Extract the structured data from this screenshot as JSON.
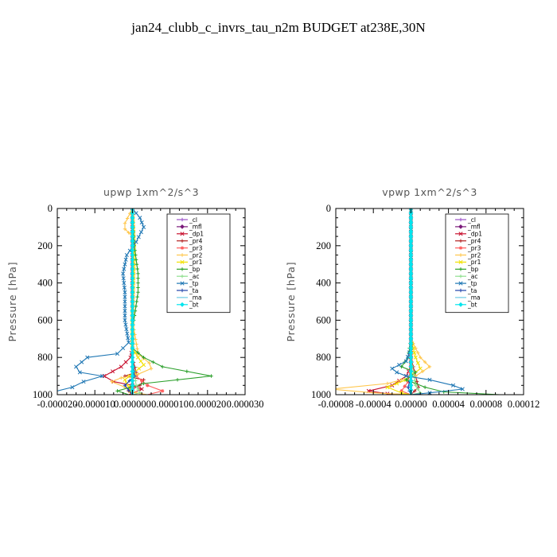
{
  "title": "jan24_clubb_c_invrs_tau_n2m  BUDGET at238E,30N",
  "chart_data": [
    {
      "type": "line",
      "title": "upwp   1xm^2/s^3",
      "ylabel": "Pressure [hPa]",
      "xlabel": "",
      "ylim": [
        1000,
        0
      ],
      "xlim": [
        -2e-05,
        3e-05
      ],
      "xtick_values": [
        -2e-05,
        -1e-05,
        0.0,
        1e-05,
        2e-05,
        3e-05
      ],
      "xtick_labels": [
        "-0.000020",
        "-0.000010",
        "0.000000",
        "0.000010",
        "0.000020",
        "0.000030"
      ],
      "ytick_values": [
        0,
        200,
        400,
        600,
        800,
        1000
      ],
      "ytick_labels": [
        "0",
        "200",
        "400",
        "600",
        "800",
        "1000"
      ],
      "legend_position": "top-right",
      "series": [
        {
          "name": "_cl",
          "color": "#9b4fc9",
          "points": [
            [
              0,
              0
            ],
            [
              0,
              200
            ],
            [
              0,
              400
            ],
            [
              0,
              600
            ],
            [
              0,
              800
            ],
            [
              0,
              900
            ],
            [
              0,
              1000
            ]
          ]
        },
        {
          "name": "_mfl",
          "color": "#7a1a7a",
          "points": [
            [
              0,
              0
            ],
            [
              0,
              200
            ],
            [
              0,
              400
            ],
            [
              0,
              600
            ],
            [
              0,
              800
            ],
            [
              0,
              900
            ],
            [
              0,
              1000
            ]
          ]
        },
        {
          "name": "_dp1",
          "color": "#c8102e",
          "points": [
            [
              0,
              0
            ],
            [
              0,
              300
            ],
            [
              0,
              600
            ],
            [
              0,
              750
            ],
            [
              -5e-07,
              800
            ],
            [
              -3e-06,
              850
            ],
            [
              -7.5e-06,
              900
            ],
            [
              -5e-06,
              930
            ],
            [
              0,
              950
            ],
            [
              2.5e-06,
              970
            ],
            [
              -1e-06,
              1000
            ]
          ]
        },
        {
          "name": "_pr4",
          "color": "#b22222",
          "points": [
            [
              0,
              0
            ],
            [
              0,
              500
            ],
            [
              0,
              800
            ],
            [
              1e-06,
              880
            ],
            [
              -2e-06,
              900
            ],
            [
              3e-06,
              920
            ],
            [
              2e-06,
              950
            ],
            [
              -1e-06,
              980
            ],
            [
              0,
              1000
            ]
          ]
        },
        {
          "name": "_pr3",
          "color": "#ff5e5e",
          "points": [
            [
              0,
              0
            ],
            [
              0,
              600
            ],
            [
              0,
              850
            ],
            [
              1e-06,
              900
            ],
            [
              4e-06,
              950
            ],
            [
              8e-06,
              980
            ],
            [
              4e-06,
              1000
            ]
          ]
        },
        {
          "name": "_pr2",
          "color": "#ffc64a",
          "points": [
            [
              0,
              0
            ],
            [
              -2e-06,
              80
            ],
            [
              -2e-06,
              110
            ],
            [
              0,
              150
            ],
            [
              5e-07,
              300
            ],
            [
              0,
              600
            ],
            [
              1.5e-06,
              780
            ],
            [
              4.5e-06,
              830
            ],
            [
              5e-06,
              860
            ],
            [
              1.5e-06,
              890
            ],
            [
              -3e-06,
              910
            ],
            [
              -5.5e-06,
              930
            ],
            [
              -2e-06,
              960
            ],
            [
              1e-06,
              990
            ],
            [
              4e-06,
              1000
            ]
          ]
        },
        {
          "name": "_pr1",
          "color": "#f2e100",
          "points": [
            [
              0,
              0
            ],
            [
              5e-07,
              200
            ],
            [
              0,
              600
            ],
            [
              0,
              750
            ],
            [
              1.5e-06,
              800
            ],
            [
              3e-06,
              840
            ],
            [
              5e-07,
              880
            ],
            [
              -2e-06,
              920
            ],
            [
              -1e-06,
              960
            ],
            [
              0,
              1000
            ]
          ]
        },
        {
          "name": "_bp",
          "color": "#2ca02c",
          "points": [
            [
              0,
              0
            ],
            [
              5e-07,
              200
            ],
            [
              1.5e-06,
              350
            ],
            [
              1.5e-06,
              450
            ],
            [
              0,
              650
            ],
            [
              0,
              750
            ],
            [
              3e-06,
              800
            ],
            [
              8e-06,
              850
            ],
            [
              2.1e-05,
              900
            ],
            [
              3e-06,
              940
            ],
            [
              -4e-06,
              980
            ],
            [
              -1e-06,
              1000
            ]
          ]
        },
        {
          "name": "_ac",
          "color": "#8fe08f",
          "points": [
            [
              0,
              0
            ],
            [
              0,
              500
            ],
            [
              0,
              800
            ],
            [
              1e-06,
              950
            ],
            [
              2e-06,
              990
            ],
            [
              0,
              1000
            ]
          ]
        },
        {
          "name": "_tp",
          "color": "#1f77b4",
          "points": [
            [
              0,
              0
            ],
            [
              2e-06,
              50
            ],
            [
              3e-06,
              100
            ],
            [
              1e-06,
              180
            ],
            [
              -1.5e-06,
              250
            ],
            [
              -2.5e-06,
              350
            ],
            [
              -2e-06,
              450
            ],
            [
              -2e-06,
              600
            ],
            [
              -1e-06,
              720
            ],
            [
              -4e-06,
              780
            ],
            [
              -1.2e-05,
              800
            ],
            [
              -1.5e-05,
              850
            ],
            [
              -1.4e-05,
              880
            ],
            [
              -8e-06,
              900
            ],
            [
              -1.3e-05,
              930
            ],
            [
              -1.6e-05,
              960
            ],
            [
              -2.2e-05,
              990
            ]
          ]
        },
        {
          "name": "_ta",
          "color": "#2244aa",
          "points": [
            [
              0,
              0
            ],
            [
              0,
              300
            ],
            [
              0,
              600
            ],
            [
              0,
              800
            ],
            [
              5e-07,
              900
            ],
            [
              -2e-06,
              950
            ],
            [
              0,
              1000
            ]
          ]
        },
        {
          "name": "_ma",
          "color": "#6ecbe6",
          "points": [
            [
              0,
              0
            ],
            [
              0,
              400
            ],
            [
              0,
              800
            ],
            [
              0,
              1000
            ]
          ]
        },
        {
          "name": "_bt",
          "color": "#00e5ee",
          "points": [
            [
              0,
              0
            ],
            [
              0,
              500
            ],
            [
              0,
              1000
            ]
          ]
        }
      ]
    },
    {
      "type": "line",
      "title": "vpwp   1xm^2/s^3",
      "ylabel": "Pressure [hPa]",
      "xlabel": "",
      "ylim": [
        1000,
        0
      ],
      "xlim": [
        -8e-05,
        0.00012
      ],
      "xtick_values": [
        -8e-05,
        -4e-05,
        0.0,
        4e-05,
        8e-05,
        0.00012
      ],
      "xtick_labels": [
        "-0.00008",
        "-0.00004",
        "0.00000",
        "0.00004",
        "0.00008",
        "0.00012"
      ],
      "ytick_values": [
        0,
        200,
        400,
        600,
        800,
        1000
      ],
      "ytick_labels": [
        "0",
        "200",
        "400",
        "600",
        "800",
        "1000"
      ],
      "legend_position": "top-right",
      "series": [
        {
          "name": "_cl",
          "color": "#9b4fc9",
          "points": [
            [
              0,
              0
            ],
            [
              0,
              250
            ],
            [
              0,
              500
            ],
            [
              0,
              750
            ],
            [
              0,
              1000
            ]
          ]
        },
        {
          "name": "_mfl",
          "color": "#7a1a7a",
          "points": [
            [
              0,
              0
            ],
            [
              0,
              250
            ],
            [
              0,
              500
            ],
            [
              0,
              750
            ],
            [
              0,
              1000
            ]
          ]
        },
        {
          "name": "_dp1",
          "color": "#c8102e",
          "points": [
            [
              0,
              0
            ],
            [
              0,
              700
            ],
            [
              0,
              850
            ],
            [
              -5e-06,
              900
            ],
            [
              -2e-05,
              950
            ],
            [
              -4.5e-05,
              980
            ],
            [
              -2.5e-05,
              995
            ],
            [
              0,
              1000
            ]
          ]
        },
        {
          "name": "_pr4",
          "color": "#b22222",
          "points": [
            [
              0,
              0
            ],
            [
              0,
              800
            ],
            [
              5e-06,
              900
            ],
            [
              8e-06,
              960
            ],
            [
              0,
              1000
            ]
          ]
        },
        {
          "name": "_pr3",
          "color": "#ff5e5e",
          "points": [
            [
              0,
              0
            ],
            [
              0,
              850
            ],
            [
              -3e-06,
              930
            ],
            [
              -1e-05,
              980
            ],
            [
              0,
              1000
            ]
          ]
        },
        {
          "name": "_pr2",
          "color": "#ffc64a",
          "points": [
            [
              0,
              0
            ],
            [
              0,
              700
            ],
            [
              1e-05,
              800
            ],
            [
              2e-05,
              850
            ],
            [
              5e-06,
              900
            ],
            [
              -2.5e-05,
              940
            ],
            [
              -8.5e-05,
              970
            ],
            [
              -4e-05,
              990
            ],
            [
              0,
              1000
            ]
          ]
        },
        {
          "name": "_pr1",
          "color": "#f2e100",
          "points": [
            [
              0,
              0
            ],
            [
              0,
              700
            ],
            [
              5e-06,
              800
            ],
            [
              1e-05,
              860
            ],
            [
              -5e-06,
              920
            ],
            [
              -2.5e-05,
              960
            ],
            [
              -1e-05,
              990
            ],
            [
              0,
              1000
            ]
          ]
        },
        {
          "name": "_bp",
          "color": "#2ca02c",
          "points": [
            [
              0,
              0
            ],
            [
              0,
              700
            ],
            [
              -3e-06,
              800
            ],
            [
              -1e-05,
              850
            ],
            [
              5e-06,
              880
            ],
            [
              -5e-06,
              920
            ],
            [
              1.5e-05,
              960
            ],
            [
              3.5e-05,
              985
            ],
            [
              9.5e-05,
              1000
            ]
          ]
        },
        {
          "name": "_ac",
          "color": "#8fe08f",
          "points": [
            [
              0,
              0
            ],
            [
              0,
              800
            ],
            [
              5e-06,
              950
            ],
            [
              1e-05,
              990
            ],
            [
              0,
              1000
            ]
          ]
        },
        {
          "name": "_tp",
          "color": "#1f77b4",
          "points": [
            [
              0,
              0
            ],
            [
              0,
              750
            ],
            [
              -5e-06,
              820
            ],
            [
              -2e-05,
              860
            ],
            [
              -1.5e-05,
              880
            ],
            [
              -5e-06,
              900
            ],
            [
              2e-05,
              920
            ],
            [
              4.5e-05,
              950
            ],
            [
              5.5e-05,
              970
            ],
            [
              2e-05,
              990
            ],
            [
              0,
              1000
            ]
          ]
        },
        {
          "name": "_ta",
          "color": "#2244aa",
          "points": [
            [
              0,
              0
            ],
            [
              0,
              500
            ],
            [
              0,
              900
            ],
            [
              -3e-06,
              960
            ],
            [
              0,
              1000
            ]
          ]
        },
        {
          "name": "_ma",
          "color": "#6ecbe6",
          "points": [
            [
              0,
              0
            ],
            [
              0,
              500
            ],
            [
              0,
              1000
            ]
          ]
        },
        {
          "name": "_bt",
          "color": "#00e5ee",
          "points": [
            [
              0,
              0
            ],
            [
              0,
              500
            ],
            [
              0,
              1000
            ]
          ]
        }
      ]
    }
  ]
}
